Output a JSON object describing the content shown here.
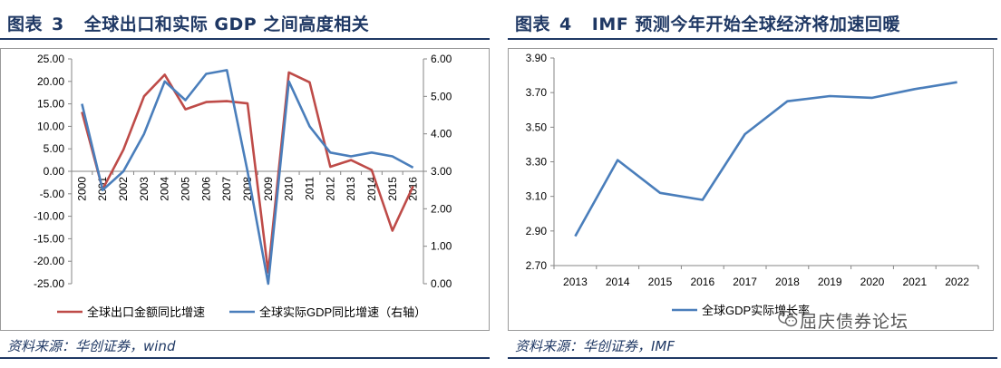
{
  "left_panel": {
    "fig_prefix": "图表",
    "fig_number": "3",
    "fig_title": "全球出口和实际 GDP 之间高度相关",
    "source": "资料来源：华创证券，wind"
  },
  "right_panel": {
    "fig_prefix": "图表",
    "fig_number": "4",
    "fig_title": "IMF 预测今年开始全球经济将加速回暖",
    "source": "资料来源：华创证券，IMF"
  },
  "watermark": {
    "text": "屈庆债券论坛",
    "icon": "wechat-icon"
  },
  "colors": {
    "title": "#1f3864",
    "red_series": "#be4b48",
    "blue_series": "#4a7ebb"
  },
  "chart_data": [
    {
      "type": "line",
      "x": [
        "2000",
        "2001",
        "2002",
        "2003",
        "2004",
        "2005",
        "2006",
        "2007",
        "2008",
        "2009",
        "2010",
        "2011",
        "2012",
        "2013",
        "2014",
        "2015",
        "2016"
      ],
      "series": [
        {
          "name": "全球出口金额同比增速",
          "axis": "left",
          "color": "#be4b48",
          "values": [
            13.2,
            -4.0,
            4.8,
            16.7,
            21.5,
            13.8,
            15.4,
            15.6,
            15.1,
            -22.5,
            22.0,
            19.8,
            1.0,
            2.5,
            0.3,
            -13.2,
            -3.3
          ]
        },
        {
          "name": "全球实际GDP同比增速（右轴）",
          "axis": "right",
          "color": "#4a7ebb",
          "values": [
            4.8,
            2.5,
            3.0,
            4.0,
            5.4,
            4.9,
            5.6,
            5.7,
            3.0,
            0.0,
            5.4,
            4.2,
            3.5,
            3.4,
            3.5,
            3.4,
            3.1
          ]
        }
      ],
      "ylim_left": [
        -25,
        25
      ],
      "yticks_left": [
        "25.00",
        "20.00",
        "15.00",
        "10.00",
        "5.00",
        "0.00",
        "-5.00",
        "-10.00",
        "-15.00",
        "-20.00",
        "-25.00"
      ],
      "ylim_right": [
        0,
        6
      ],
      "yticks_right": [
        "6.00",
        "5.00",
        "4.00",
        "3.00",
        "2.00",
        "1.00",
        "0.00"
      ],
      "grid": false,
      "legend": "bottom"
    },
    {
      "type": "line",
      "x": [
        "2013",
        "2014",
        "2015",
        "2016",
        "2017",
        "2018",
        "2019",
        "2020",
        "2021",
        "2022"
      ],
      "series": [
        {
          "name": "全球GDP实际增长率",
          "color": "#4a7ebb",
          "values": [
            2.87,
            3.31,
            3.12,
            3.08,
            3.46,
            3.65,
            3.68,
            3.67,
            3.72,
            3.76
          ]
        }
      ],
      "ylim": [
        2.7,
        3.9
      ],
      "yticks": [
        "3.90",
        "3.70",
        "3.50",
        "3.30",
        "3.10",
        "2.90",
        "2.70"
      ],
      "grid": false,
      "legend": "bottom"
    }
  ]
}
